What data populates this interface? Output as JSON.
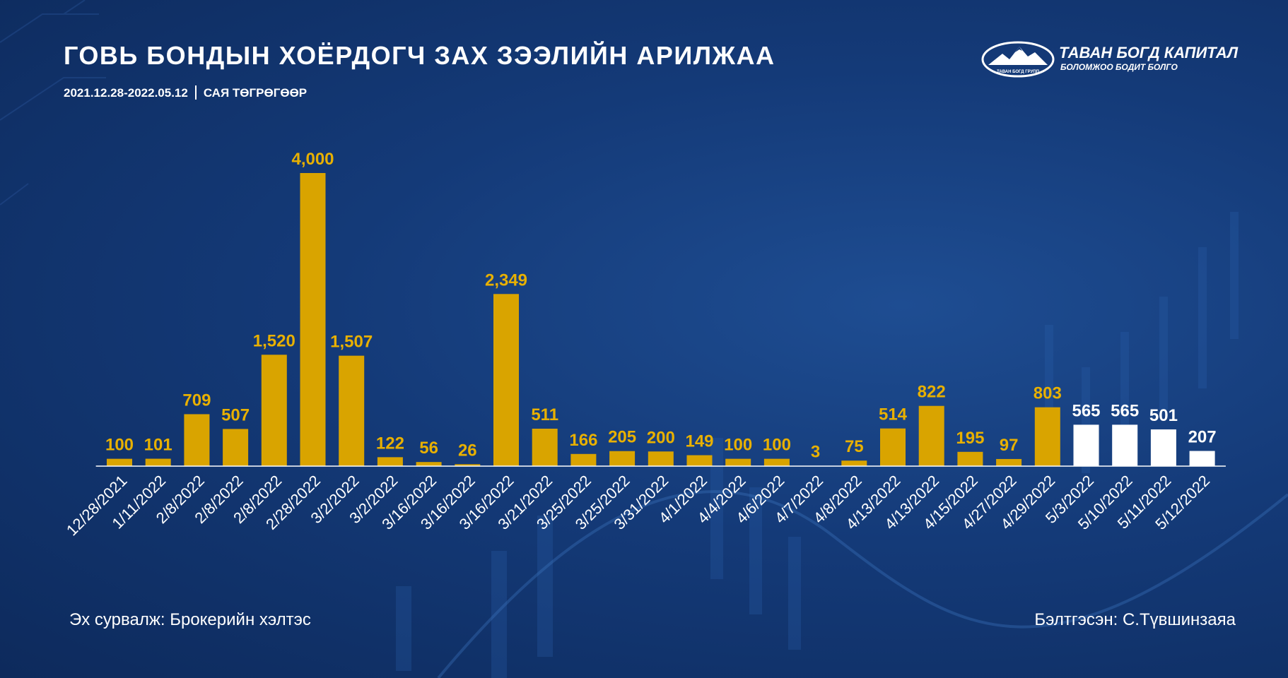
{
  "header": {
    "title": "ГОВЬ БОНДЫН ХОЁРДОГЧ ЗАХ ЗЭЭЛИЙН АРИЛЖАА",
    "date_range": "2021.12.28-2022.05.12",
    "unit": "САЯ ТӨГРӨГӨӨР"
  },
  "logo": {
    "name": "ТАВАН БОГД КАПИТАЛ",
    "tagline": "БОЛОМЖОО БОДИТ БОЛГО",
    "emblem_text": "ТАВАН БОГД ГРУПП"
  },
  "footer": {
    "source": "Эх сурвалж: Брокерийн хэлтэс",
    "author": "Бэлтгэсэн: С.Түвшинзаяа"
  },
  "colors": {
    "background": "#143a78",
    "bar_gold": "#d9a400",
    "bar_white": "#ffffff",
    "label_gold": "#e8b000",
    "axis": "#ffffff"
  },
  "chart_data": {
    "type": "bar",
    "title": "ГОВЬ БОНДЫН ХОЁРДОГЧ ЗАХ ЗЭЭЛИЙН АРИЛЖАА",
    "xlabel": "",
    "ylabel": "",
    "ylim": [
      0,
      4000
    ],
    "grid": false,
    "categories": [
      "12/28/2021",
      "1/11/2022",
      "2/8/2022",
      "2/8/2022",
      "2/8/2022",
      "2/28/2022",
      "3/2/2022",
      "3/2/2022",
      "3/16/2022",
      "3/16/2022",
      "3/16/2022",
      "3/21/2022",
      "3/25/2022",
      "3/25/2022",
      "3/31/2022",
      "4/1/2022",
      "4/4/2022",
      "4/6/2022",
      "4/7/2022",
      "4/8/2022",
      "4/13/2022",
      "4/13/2022",
      "4/15/2022",
      "4/27/2022",
      "4/29/2022",
      "5/3/2022",
      "5/10/2022",
      "5/11/2022",
      "5/12/2022"
    ],
    "values": [
      100,
      101,
      709,
      507,
      1520,
      4000,
      1507,
      122,
      56,
      26,
      2349,
      511,
      166,
      205,
      200,
      149,
      100,
      100,
      3,
      75,
      514,
      822,
      195,
      97,
      803,
      565,
      565,
      501,
      207
    ],
    "labels": [
      "100",
      "101",
      "709",
      "507",
      "1,520",
      "4,000",
      "1,507",
      "122",
      "56",
      "26",
      "2,349",
      "511",
      "166",
      "205",
      "200",
      "149",
      "100",
      "100",
      "3",
      "75",
      "514",
      "822",
      "195",
      "97",
      "803",
      "565",
      "565",
      "501",
      "207"
    ],
    "highlighted_from_index": 25
  }
}
